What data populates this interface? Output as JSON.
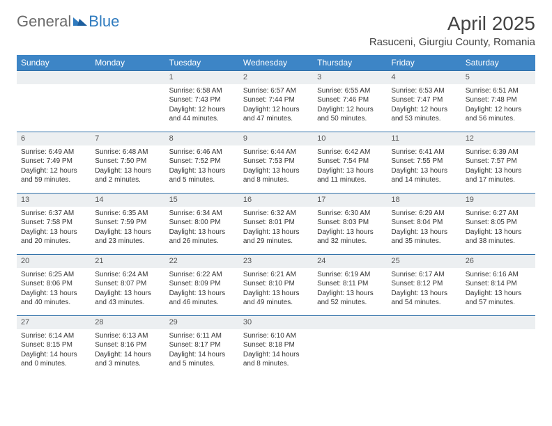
{
  "logo": {
    "general": "General",
    "blue": "Blue"
  },
  "header": {
    "title": "April 2025",
    "location": "Rasuceni, Giurgiu County, Romania"
  },
  "styling": {
    "header_bg": "#3d85c6",
    "header_fg": "#ffffff",
    "daynum_bg": "#eceff1",
    "cell_border": "#2f6fa8",
    "body_font_size": 10,
    "title_font_size": 28,
    "location_font_size": 15,
    "weekday_font_size": 12
  },
  "weekdays": [
    "Sunday",
    "Monday",
    "Tuesday",
    "Wednesday",
    "Thursday",
    "Friday",
    "Saturday"
  ],
  "weeks": [
    [
      {
        "blank": true
      },
      {
        "blank": true
      },
      {
        "day": "1",
        "sunrise": "Sunrise: 6:58 AM",
        "sunset": "Sunset: 7:43 PM",
        "daylight1": "Daylight: 12 hours",
        "daylight2": "and 44 minutes."
      },
      {
        "day": "2",
        "sunrise": "Sunrise: 6:57 AM",
        "sunset": "Sunset: 7:44 PM",
        "daylight1": "Daylight: 12 hours",
        "daylight2": "and 47 minutes."
      },
      {
        "day": "3",
        "sunrise": "Sunrise: 6:55 AM",
        "sunset": "Sunset: 7:46 PM",
        "daylight1": "Daylight: 12 hours",
        "daylight2": "and 50 minutes."
      },
      {
        "day": "4",
        "sunrise": "Sunrise: 6:53 AM",
        "sunset": "Sunset: 7:47 PM",
        "daylight1": "Daylight: 12 hours",
        "daylight2": "and 53 minutes."
      },
      {
        "day": "5",
        "sunrise": "Sunrise: 6:51 AM",
        "sunset": "Sunset: 7:48 PM",
        "daylight1": "Daylight: 12 hours",
        "daylight2": "and 56 minutes."
      }
    ],
    [
      {
        "day": "6",
        "sunrise": "Sunrise: 6:49 AM",
        "sunset": "Sunset: 7:49 PM",
        "daylight1": "Daylight: 12 hours",
        "daylight2": "and 59 minutes."
      },
      {
        "day": "7",
        "sunrise": "Sunrise: 6:48 AM",
        "sunset": "Sunset: 7:50 PM",
        "daylight1": "Daylight: 13 hours",
        "daylight2": "and 2 minutes."
      },
      {
        "day": "8",
        "sunrise": "Sunrise: 6:46 AM",
        "sunset": "Sunset: 7:52 PM",
        "daylight1": "Daylight: 13 hours",
        "daylight2": "and 5 minutes."
      },
      {
        "day": "9",
        "sunrise": "Sunrise: 6:44 AM",
        "sunset": "Sunset: 7:53 PM",
        "daylight1": "Daylight: 13 hours",
        "daylight2": "and 8 minutes."
      },
      {
        "day": "10",
        "sunrise": "Sunrise: 6:42 AM",
        "sunset": "Sunset: 7:54 PM",
        "daylight1": "Daylight: 13 hours",
        "daylight2": "and 11 minutes."
      },
      {
        "day": "11",
        "sunrise": "Sunrise: 6:41 AM",
        "sunset": "Sunset: 7:55 PM",
        "daylight1": "Daylight: 13 hours",
        "daylight2": "and 14 minutes."
      },
      {
        "day": "12",
        "sunrise": "Sunrise: 6:39 AM",
        "sunset": "Sunset: 7:57 PM",
        "daylight1": "Daylight: 13 hours",
        "daylight2": "and 17 minutes."
      }
    ],
    [
      {
        "day": "13",
        "sunrise": "Sunrise: 6:37 AM",
        "sunset": "Sunset: 7:58 PM",
        "daylight1": "Daylight: 13 hours",
        "daylight2": "and 20 minutes."
      },
      {
        "day": "14",
        "sunrise": "Sunrise: 6:35 AM",
        "sunset": "Sunset: 7:59 PM",
        "daylight1": "Daylight: 13 hours",
        "daylight2": "and 23 minutes."
      },
      {
        "day": "15",
        "sunrise": "Sunrise: 6:34 AM",
        "sunset": "Sunset: 8:00 PM",
        "daylight1": "Daylight: 13 hours",
        "daylight2": "and 26 minutes."
      },
      {
        "day": "16",
        "sunrise": "Sunrise: 6:32 AM",
        "sunset": "Sunset: 8:01 PM",
        "daylight1": "Daylight: 13 hours",
        "daylight2": "and 29 minutes."
      },
      {
        "day": "17",
        "sunrise": "Sunrise: 6:30 AM",
        "sunset": "Sunset: 8:03 PM",
        "daylight1": "Daylight: 13 hours",
        "daylight2": "and 32 minutes."
      },
      {
        "day": "18",
        "sunrise": "Sunrise: 6:29 AM",
        "sunset": "Sunset: 8:04 PM",
        "daylight1": "Daylight: 13 hours",
        "daylight2": "and 35 minutes."
      },
      {
        "day": "19",
        "sunrise": "Sunrise: 6:27 AM",
        "sunset": "Sunset: 8:05 PM",
        "daylight1": "Daylight: 13 hours",
        "daylight2": "and 38 minutes."
      }
    ],
    [
      {
        "day": "20",
        "sunrise": "Sunrise: 6:25 AM",
        "sunset": "Sunset: 8:06 PM",
        "daylight1": "Daylight: 13 hours",
        "daylight2": "and 40 minutes."
      },
      {
        "day": "21",
        "sunrise": "Sunrise: 6:24 AM",
        "sunset": "Sunset: 8:07 PM",
        "daylight1": "Daylight: 13 hours",
        "daylight2": "and 43 minutes."
      },
      {
        "day": "22",
        "sunrise": "Sunrise: 6:22 AM",
        "sunset": "Sunset: 8:09 PM",
        "daylight1": "Daylight: 13 hours",
        "daylight2": "and 46 minutes."
      },
      {
        "day": "23",
        "sunrise": "Sunrise: 6:21 AM",
        "sunset": "Sunset: 8:10 PM",
        "daylight1": "Daylight: 13 hours",
        "daylight2": "and 49 minutes."
      },
      {
        "day": "24",
        "sunrise": "Sunrise: 6:19 AM",
        "sunset": "Sunset: 8:11 PM",
        "daylight1": "Daylight: 13 hours",
        "daylight2": "and 52 minutes."
      },
      {
        "day": "25",
        "sunrise": "Sunrise: 6:17 AM",
        "sunset": "Sunset: 8:12 PM",
        "daylight1": "Daylight: 13 hours",
        "daylight2": "and 54 minutes."
      },
      {
        "day": "26",
        "sunrise": "Sunrise: 6:16 AM",
        "sunset": "Sunset: 8:14 PM",
        "daylight1": "Daylight: 13 hours",
        "daylight2": "and 57 minutes."
      }
    ],
    [
      {
        "day": "27",
        "sunrise": "Sunrise: 6:14 AM",
        "sunset": "Sunset: 8:15 PM",
        "daylight1": "Daylight: 14 hours",
        "daylight2": "and 0 minutes."
      },
      {
        "day": "28",
        "sunrise": "Sunrise: 6:13 AM",
        "sunset": "Sunset: 8:16 PM",
        "daylight1": "Daylight: 14 hours",
        "daylight2": "and 3 minutes."
      },
      {
        "day": "29",
        "sunrise": "Sunrise: 6:11 AM",
        "sunset": "Sunset: 8:17 PM",
        "daylight1": "Daylight: 14 hours",
        "daylight2": "and 5 minutes."
      },
      {
        "day": "30",
        "sunrise": "Sunrise: 6:10 AM",
        "sunset": "Sunset: 8:18 PM",
        "daylight1": "Daylight: 14 hours",
        "daylight2": "and 8 minutes."
      },
      {
        "blank": true
      },
      {
        "blank": true
      },
      {
        "blank": true
      }
    ]
  ]
}
